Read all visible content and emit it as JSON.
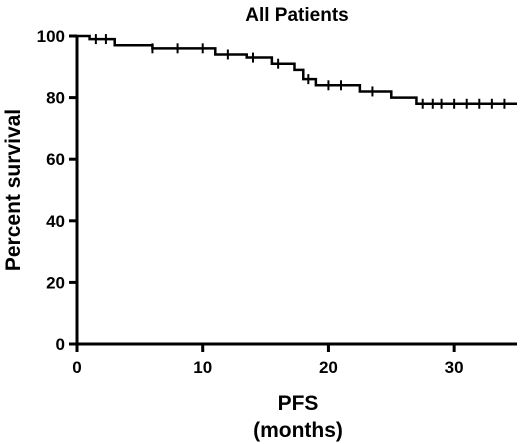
{
  "chart_data": {
    "type": "line",
    "title": "All Patients",
    "xlabel": [
      "PFS",
      "(months)"
    ],
    "ylabel": "Percent survival",
    "xlim": [
      0,
      35
    ],
    "ylim": [
      0,
      100
    ],
    "x_ticks": [
      0,
      10,
      20,
      30
    ],
    "y_ticks": [
      0,
      20,
      40,
      60,
      80,
      100
    ],
    "grid": false,
    "legend": "none",
    "series": [
      {
        "style": "step",
        "color": "#000000",
        "steps": [
          [
            0,
            100
          ],
          [
            1.0,
            99
          ],
          [
            3.0,
            97
          ],
          [
            6.0,
            96
          ],
          [
            11.0,
            94
          ],
          [
            13.5,
            93
          ],
          [
            15.5,
            91
          ],
          [
            17.3,
            89
          ],
          [
            18.0,
            86
          ],
          [
            19.0,
            84
          ],
          [
            22.5,
            82
          ],
          [
            25.0,
            80
          ],
          [
            27.0,
            78
          ],
          [
            35.0,
            78
          ]
        ],
        "censor_marks": [
          [
            1.5,
            99
          ],
          [
            2.3,
            99
          ],
          [
            6.0,
            96
          ],
          [
            8.0,
            96
          ],
          [
            10.0,
            96
          ],
          [
            12.0,
            94
          ],
          [
            14.0,
            93
          ],
          [
            16.0,
            91
          ],
          [
            18.4,
            86
          ],
          [
            20.0,
            84
          ],
          [
            21.0,
            84
          ],
          [
            23.5,
            82
          ],
          [
            27.5,
            78
          ],
          [
            28.3,
            78
          ],
          [
            29.0,
            78
          ],
          [
            30.0,
            78
          ],
          [
            31.0,
            78
          ],
          [
            32.0,
            78
          ],
          [
            33.0,
            78
          ],
          [
            34.0,
            78
          ]
        ]
      }
    ]
  }
}
